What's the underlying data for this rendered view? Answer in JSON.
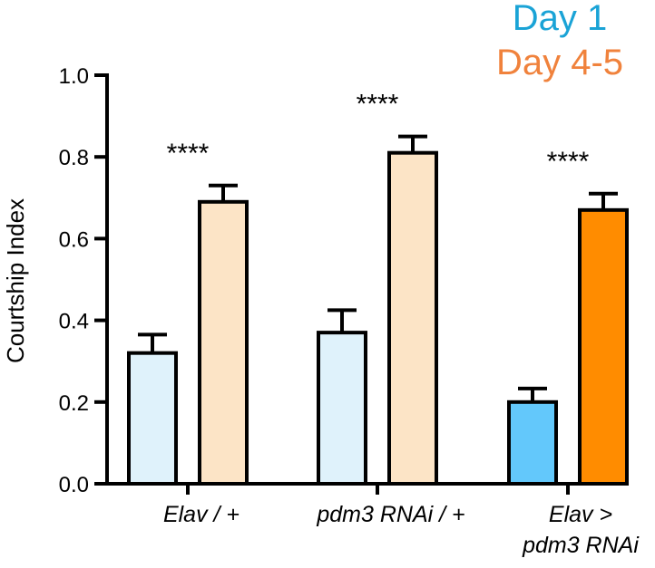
{
  "chart_data": {
    "type": "bar",
    "title": "",
    "xlabel": "",
    "ylabel": "Courtship Index",
    "ylim": [
      0,
      1.0
    ],
    "yticks": [
      "0.0",
      "0.2",
      "0.4",
      "0.6",
      "0.8",
      "1.0"
    ],
    "legend_position": "top-right",
    "categories": [
      {
        "lines": [
          "Elav / +"
        ]
      },
      {
        "lines": [
          "pdm3 RNAi / +"
        ]
      },
      {
        "lines": [
          "Elav >",
          "pdm3 RNAi"
        ]
      }
    ],
    "series": [
      {
        "name": "Day 1",
        "color": "#1aa3d6",
        "values": [
          0.32,
          0.37,
          0.2
        ],
        "errors": [
          0.045,
          0.055,
          0.033
        ],
        "bar_colors": [
          "#dff2fb",
          "#dff2fb",
          "#63c8fb"
        ]
      },
      {
        "name": "Day 4-5",
        "color": "#f0823c",
        "values": [
          0.69,
          0.81,
          0.67
        ],
        "errors": [
          0.04,
          0.04,
          0.04
        ],
        "bar_colors": [
          "#fce4c6",
          "#fce4c6",
          "#ff8c00"
        ]
      }
    ],
    "annotations": [
      "****",
      "****",
      "****"
    ]
  }
}
